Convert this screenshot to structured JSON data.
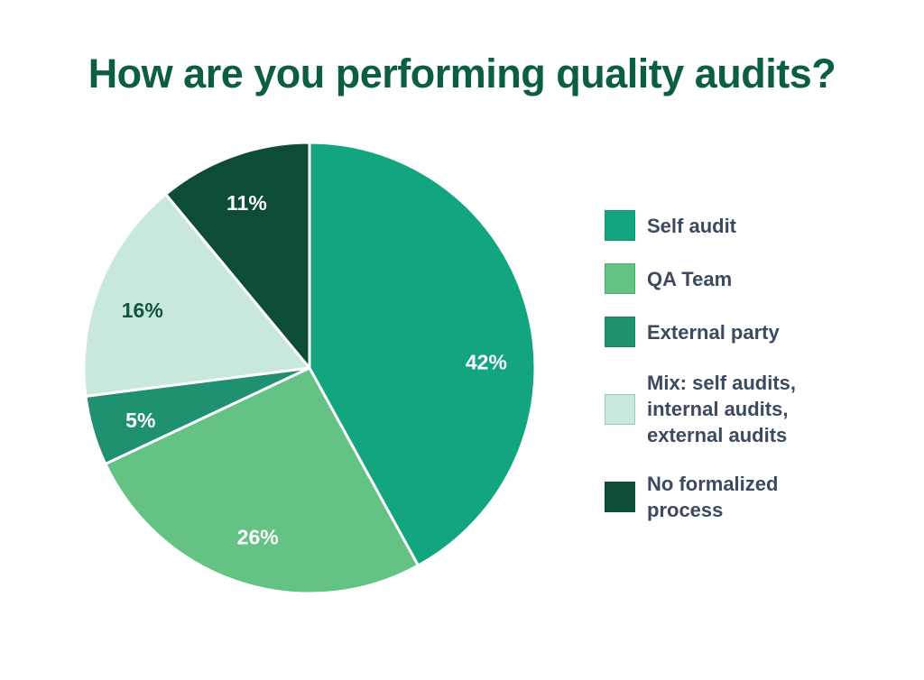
{
  "chart_data": {
    "type": "pie",
    "title": "How are you performing quality audits?",
    "title_color": "#0B5D44",
    "unit": "%",
    "start_angle_deg": 0,
    "direction": "clockwise",
    "legend_position": "right",
    "legend_text_color": "#3B4A5E",
    "categories": [
      "Self audit",
      "QA Team",
      "External party",
      "Mix: self audits, internal audits, external audits",
      "No formalized process"
    ],
    "values": [
      42,
      26,
      5,
      16,
      11
    ],
    "slices": [
      {
        "label": "Self audit",
        "value": 42,
        "pct_label": "42%",
        "color": "#12A57E",
        "pct_label_color": "#FFFFFF"
      },
      {
        "label": "QA Team",
        "value": 26,
        "pct_label": "26%",
        "color": "#63C284",
        "pct_label_color": "#FFFFFF"
      },
      {
        "label": "External party",
        "value": 5,
        "pct_label": "5%",
        "color": "#1F9170",
        "pct_label_color": "#FFFFFF"
      },
      {
        "label": "Mix: self audits,\ninternal audits,\nexternal audits",
        "value": 16,
        "pct_label": "16%",
        "color": "#C7E8DA",
        "pct_label_color": "#14543F"
      },
      {
        "label": "No formalized\nprocess",
        "value": 11,
        "pct_label": "11%",
        "color": "#0D4C38",
        "pct_label_color": "#FFFFFF"
      }
    ]
  }
}
